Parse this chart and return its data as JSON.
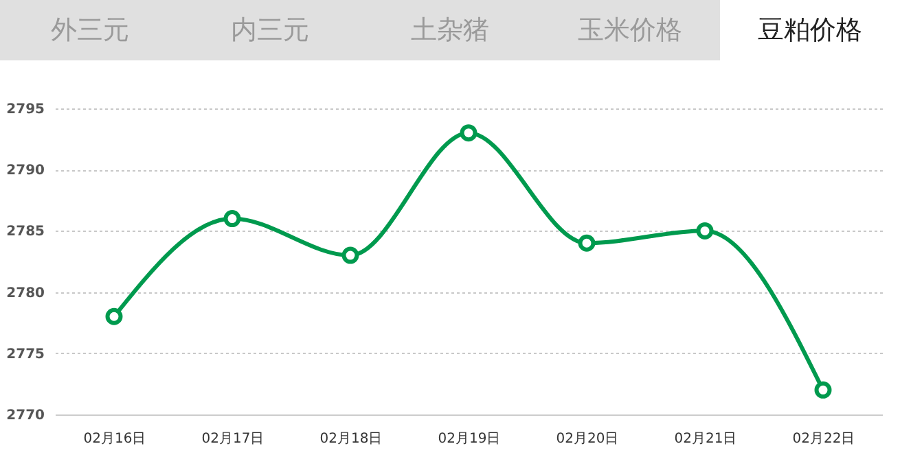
{
  "chart_data": {
    "type": "line",
    "title": "豆粕价格",
    "annotations": [
      "外三元",
      "内三元",
      "土杂猪",
      "玉米价格"
    ],
    "categories": [
      "02月16日",
      "02月17日",
      "02月18日",
      "02月19日",
      "02月20日",
      "02月21日",
      "02月22日"
    ],
    "series": [
      {
        "color": "#009a4e",
        "values": [
          2778,
          2786,
          2783,
          2793,
          2784,
          2785,
          2772
        ]
      }
    ],
    "ylim": [
      2770,
      2795
    ],
    "yticks": [
      2770,
      2775,
      2780,
      2785,
      2790,
      2795
    ],
    "grid": "y",
    "marker": "circle"
  }
}
